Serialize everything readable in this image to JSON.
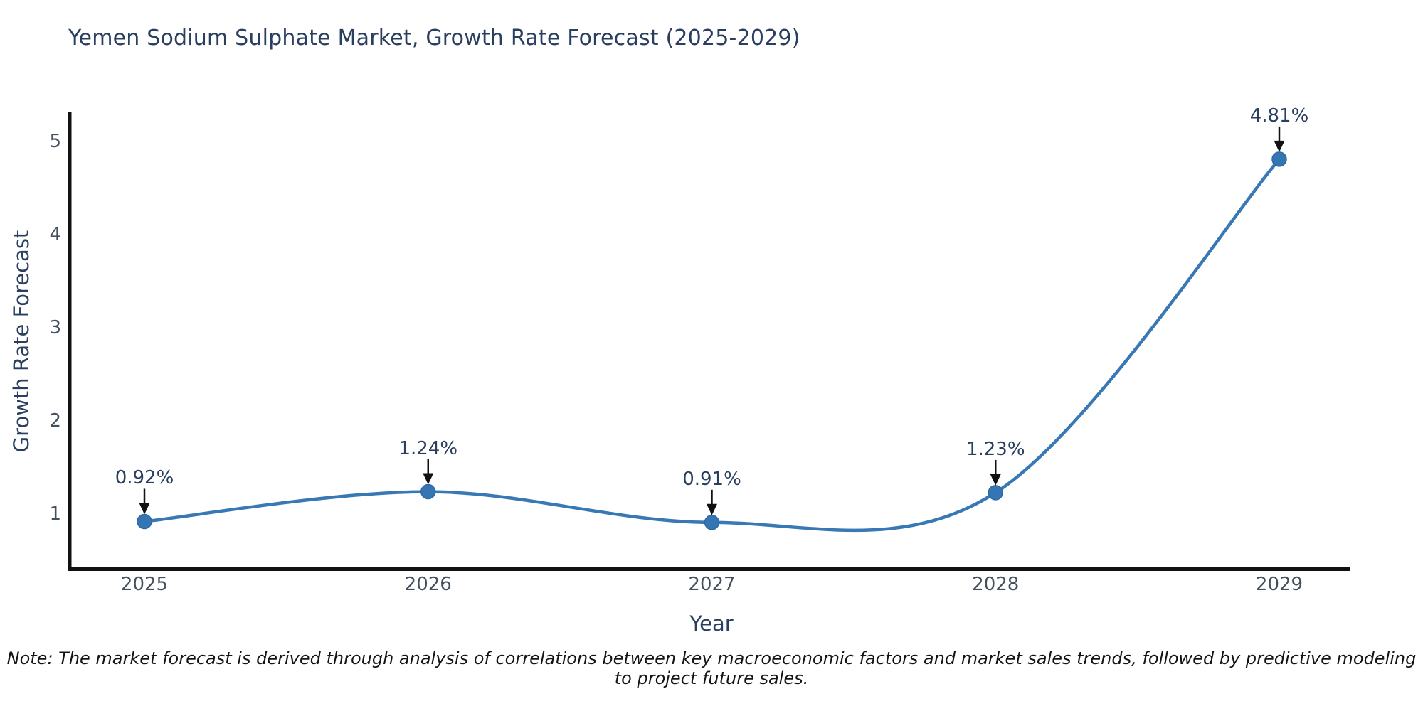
{
  "header": {
    "title": "Yemen Sodium Sulphate Market, Growth Rate Forecast (2025-2029)"
  },
  "footer": {
    "note": "Note: The market forecast is derived through analysis of correlations between key macroeconomic factors and market sales trends, followed by predictive modeling to project future sales."
  },
  "chart_data": {
    "type": "line",
    "title": "Yemen Sodium Sulphate Market, Growth Rate Forecast (2025-2029)",
    "xlabel": "Year",
    "ylabel": "Growth Rate Forecast",
    "categories": [
      "2025",
      "2026",
      "2027",
      "2028",
      "2029"
    ],
    "values": [
      0.92,
      1.24,
      0.91,
      1.23,
      4.81
    ],
    "point_labels": [
      "0.92%",
      "1.24%",
      "0.91%",
      "1.23%",
      "4.81%"
    ],
    "y_ticks": [
      1,
      2,
      3,
      4,
      5
    ],
    "ylim": [
      0.4,
      5.3
    ],
    "line_shape": "spline",
    "grid": false,
    "legend": "none",
    "markers": true,
    "annotation_arrows": true,
    "colors": {
      "line": "#3878b4",
      "marker_fill": "#3575b1",
      "marker_edge": "#2d6aa6",
      "axis_line": "#111111",
      "title_text": "#2a3f5f",
      "tick_text": "#45505f",
      "annotation_text": "#2a3f5f",
      "arrow": "#111111",
      "note_text": "#141414",
      "background": "#ffffff"
    }
  }
}
